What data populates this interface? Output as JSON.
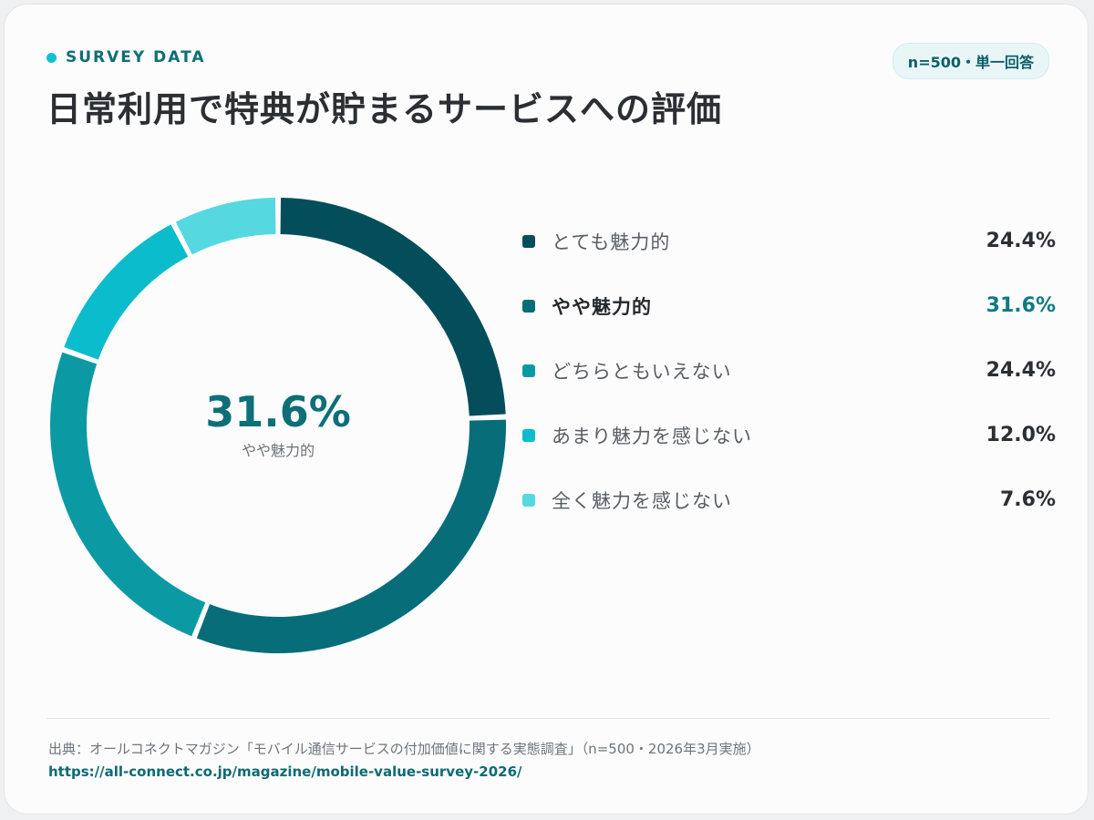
{
  "header": {
    "eyebrow": "SURVEY DATA",
    "badge": "n=500・単一回答",
    "title": "日常利用で特典が貯まるサービスへの評価"
  },
  "highlight": {
    "value": "31.6%",
    "label": "やや魅力的"
  },
  "chart_data": {
    "type": "pie",
    "title": "日常利用で特典が貯まるサービスへの評価",
    "unit": "%",
    "categories": [
      "とても魅力的",
      "やや魅力的",
      "どちらともいえない",
      "あまり魅力を感じない",
      "全く魅力を感じない"
    ],
    "values": [
      24.4,
      31.6,
      24.4,
      12.0,
      7.6
    ],
    "value_labels": [
      "24.4%",
      "31.6%",
      "24.4%",
      "12.0%",
      "7.6%"
    ],
    "colors": [
      "#044e5b",
      "#066d79",
      "#0b9aa4",
      "#0bbccc",
      "#56d8e0"
    ],
    "highlighted_index": 1,
    "legend_position": "right"
  },
  "footer": {
    "source": "出典：オールコネクトマガジン「モバイル通信サービスの付加価値に関する実態調査」（n=500・2026年3月実施）",
    "url": "https://all-connect.co.jp/magazine/mobile-value-survey-2026/"
  }
}
